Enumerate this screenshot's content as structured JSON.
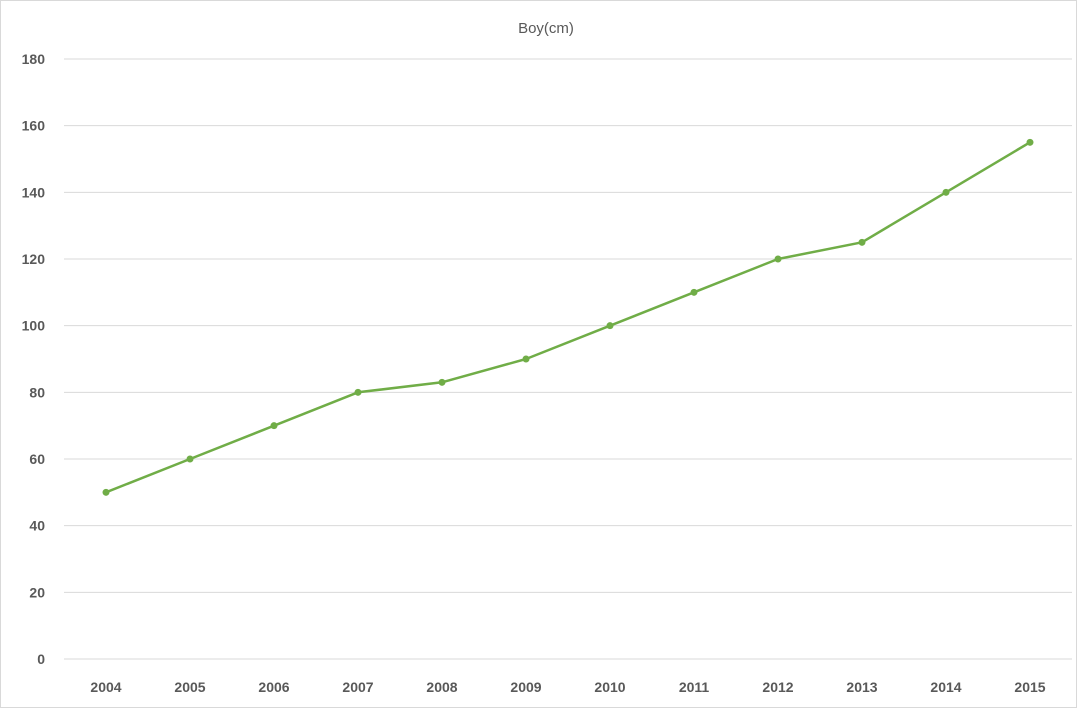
{
  "chart_data": {
    "type": "line",
    "title": "Boy(cm)",
    "xlabel": "",
    "ylabel": "",
    "categories": [
      "2004",
      "2005",
      "2006",
      "2007",
      "2008",
      "2009",
      "2010",
      "2011",
      "2012",
      "2013",
      "2014",
      "2015"
    ],
    "series": [
      {
        "values": [
          50,
          60,
          70,
          80,
          83,
          90,
          100,
          110,
          120,
          125,
          140,
          155
        ]
      }
    ],
    "ylim": [
      0,
      180
    ],
    "y_ticks": [
      0,
      20,
      40,
      60,
      80,
      100,
      120,
      140,
      160,
      180
    ],
    "grid": true,
    "legend": "none",
    "line_color": "#70ad47",
    "grid_color": "#d9d9d9"
  }
}
